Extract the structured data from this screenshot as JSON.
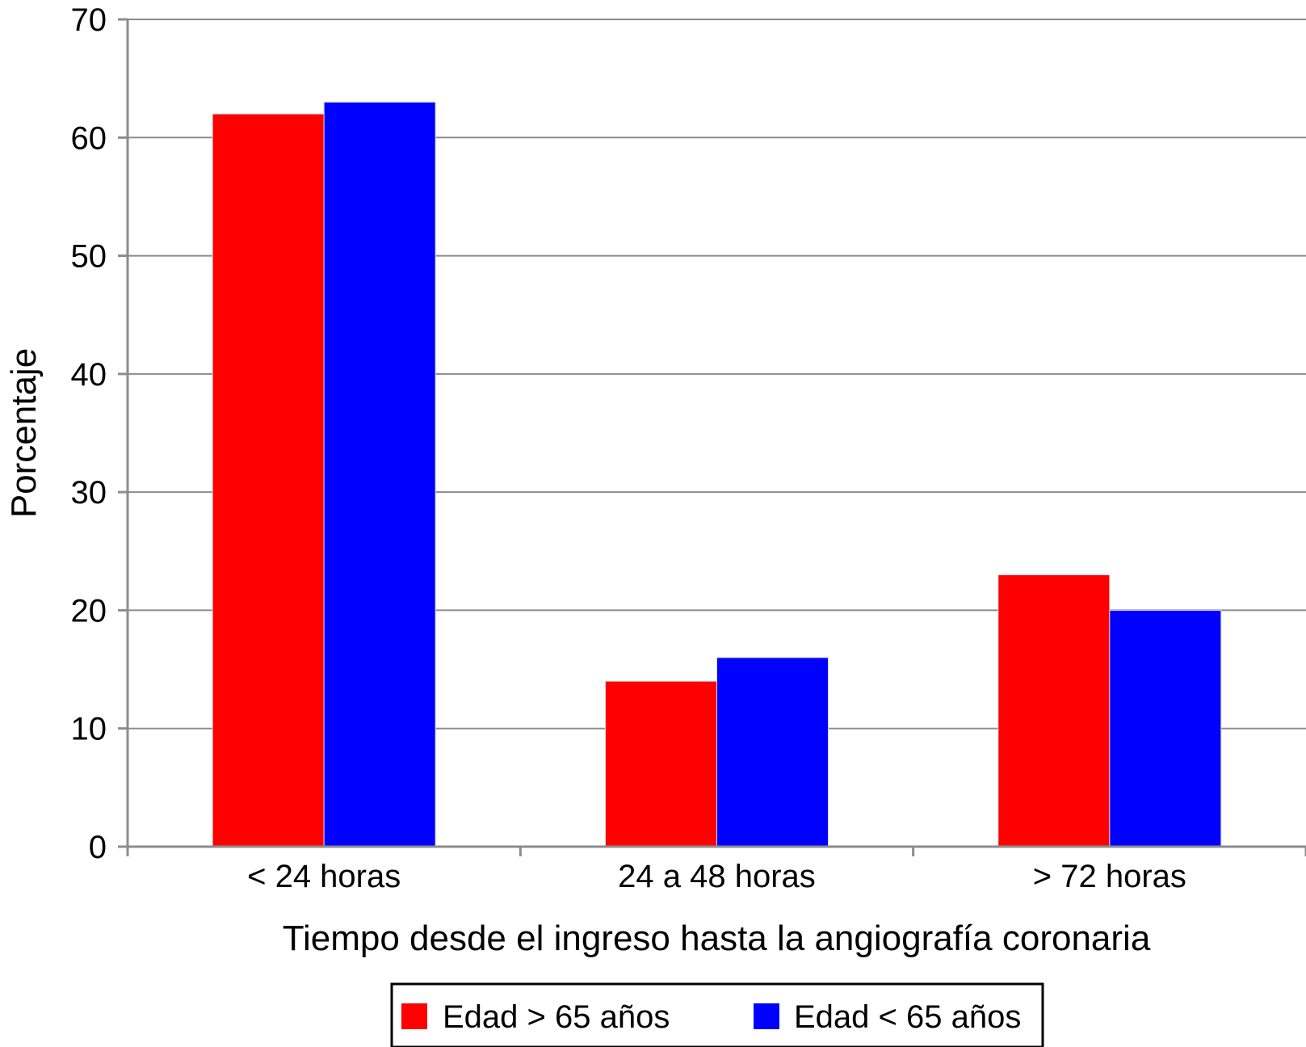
{
  "chart_data": {
    "type": "bar",
    "categories": [
      "< 24 horas",
      "24 a 48 horas",
      "> 72 horas"
    ],
    "series": [
      {
        "name": "Edad > 65 años",
        "color": "#ff0000",
        "values": [
          62,
          14,
          23
        ]
      },
      {
        "name": "Edad < 65 años",
        "color": "#0000ff",
        "values": [
          63,
          16,
          20
        ]
      }
    ],
    "xlabel": "Tiempo desde el ingreso hasta la angiografía coronaria",
    "ylabel": "Porcentaje",
    "ylim": [
      0,
      70
    ],
    "yticks": [
      0,
      10,
      20,
      30,
      40,
      50,
      60,
      70
    ],
    "grid": true,
    "legend_position": "bottom"
  }
}
